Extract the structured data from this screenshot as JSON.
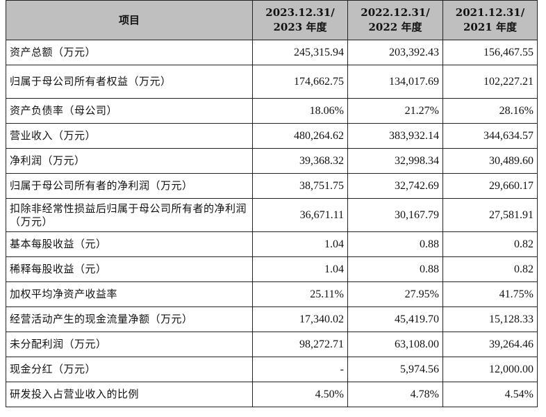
{
  "header": {
    "item": "项目",
    "periods": [
      {
        "line1": "2023.12.31/",
        "line2": "2023 年度"
      },
      {
        "line1": "2022.12.31/",
        "line2": "2022 年度"
      },
      {
        "line1": "2021.12.31/",
        "line2": "2021 年度"
      }
    ]
  },
  "rows": [
    {
      "label": "资产总额（万元）",
      "values": [
        "245,315.94",
        "203,392.43",
        "156,467.55"
      ],
      "tall": false
    },
    {
      "label": "归属于母公司所有者权益（万元）",
      "values": [
        "174,662.75",
        "134,017.69",
        "102,227.21"
      ],
      "tall": true
    },
    {
      "label": "资产负债率（母公司）",
      "values": [
        "18.06%",
        "21.27%",
        "28.16%"
      ],
      "tall": false
    },
    {
      "label": "营业收入（万元）",
      "values": [
        "480,264.62",
        "383,932.14",
        "344,634.57"
      ],
      "tall": false
    },
    {
      "label": "净利润（万元）",
      "values": [
        "39,368.32",
        "32,998.34",
        "30,489.60"
      ],
      "tall": false
    },
    {
      "label": "归属于母公司所有者的净利润（万元）",
      "values": [
        "38,751.75",
        "32,742.69",
        "29,660.17"
      ],
      "tall": false
    },
    {
      "label": "扣除非经常性损益后归属于母公司所有者的净利润（万元）",
      "values": [
        "36,671.11",
        "30,167.79",
        "27,581.91"
      ],
      "tall": true
    },
    {
      "label": "基本每股收益（元）",
      "values": [
        "1.04",
        "0.88",
        "0.82"
      ],
      "tall": false
    },
    {
      "label": "稀释每股收益（元）",
      "values": [
        "1.04",
        "0.88",
        "0.82"
      ],
      "tall": false
    },
    {
      "label": "加权平均净资产收益率",
      "values": [
        "25.11%",
        "27.95%",
        "41.75%"
      ],
      "tall": false
    },
    {
      "label": "经营活动产生的现金流量净额（万元）",
      "values": [
        "17,340.02",
        "45,419.70",
        "15,128.33"
      ],
      "tall": false
    },
    {
      "label": "未分配利润（万元）",
      "values": [
        "98,272.71",
        "63,108.00",
        "39,264.46"
      ],
      "tall": false
    },
    {
      "label": "现金分红（万元）",
      "values": [
        "-",
        "5,974.56",
        "12,000.00"
      ],
      "tall": false
    },
    {
      "label": "研发投入占营业收入的比例",
      "values": [
        "4.50%",
        "4.78%",
        "4.54%"
      ],
      "tall": false
    }
  ]
}
